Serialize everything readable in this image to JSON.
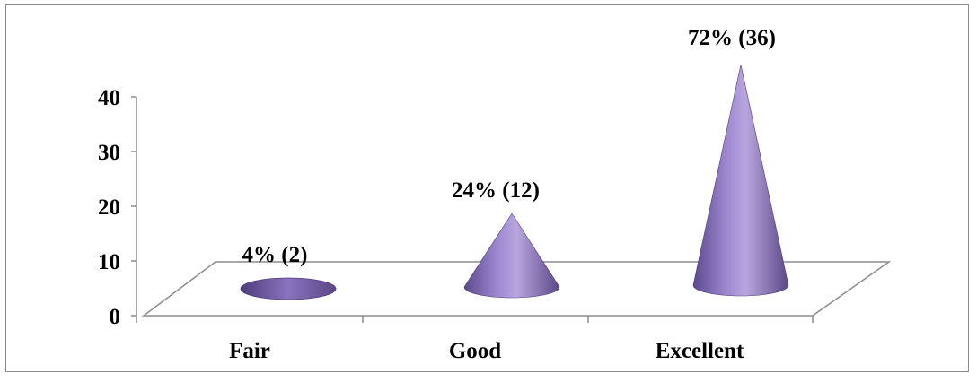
{
  "chart_data": {
    "type": "bar",
    "subtype": "3d-cone",
    "categories": [
      "Fair",
      "Good",
      "Excellent"
    ],
    "values": [
      2,
      12,
      36
    ],
    "data_labels": [
      "4% (2)",
      "24% (12)",
      "72% (36)"
    ],
    "ylim": [
      0,
      40
    ],
    "yticks": [
      "0",
      "10",
      "20",
      "30",
      "40"
    ],
    "xlabel": "",
    "ylabel": "",
    "grid": false,
    "legend": "none",
    "colors": {
      "cone_light": "#b9a6de",
      "cone_mid": "#8a72bf",
      "cone_dark": "#4f3e7c",
      "axis": "#8c8c8c"
    }
  }
}
